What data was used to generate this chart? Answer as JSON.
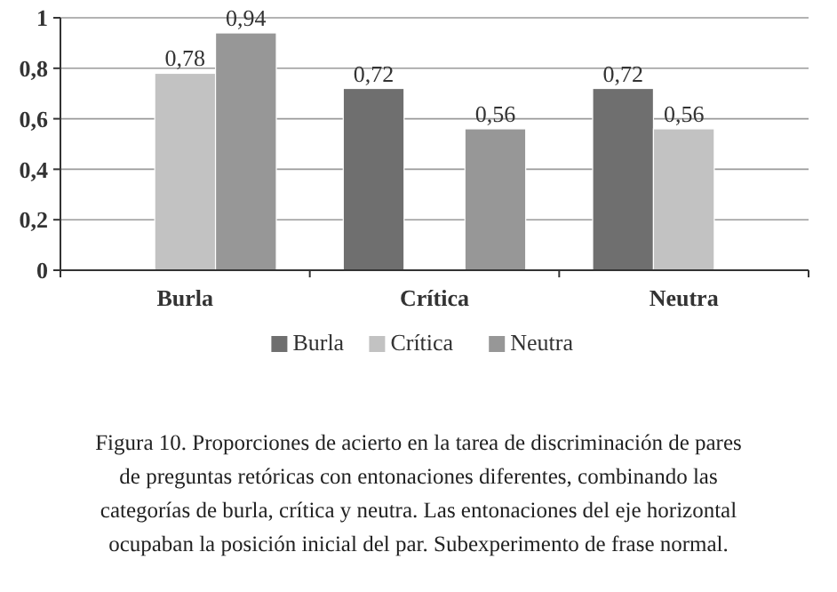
{
  "chart_data": {
    "type": "bar",
    "categories": [
      "Burla",
      "Crítica",
      "Neutra"
    ],
    "series": [
      {
        "name": "Burla",
        "color": "#6f6f6f",
        "values": [
          null,
          0.72,
          0.72
        ],
        "value_labels": [
          null,
          "0,72",
          "0,72"
        ]
      },
      {
        "name": "Crítica",
        "color": "#c2c2c2",
        "values": [
          0.78,
          null,
          0.56
        ],
        "value_labels": [
          "0,78",
          null,
          "0,56"
        ]
      },
      {
        "name": "Neutra",
        "color": "#979797",
        "values": [
          0.94,
          0.56,
          null
        ],
        "value_labels": [
          "0,94",
          "0,56",
          null
        ]
      }
    ],
    "ylim": [
      0,
      1
    ],
    "yticks": [
      0,
      {
        "value": 0.2,
        "label": "0,2"
      },
      {
        "value": 0.4,
        "label": "0,4"
      },
      {
        "value": 0.6,
        "label": "0,6"
      },
      {
        "value": 0.8,
        "label": "0,8"
      },
      1
    ],
    "grid": "y",
    "legend": "bottom",
    "annotations": [
      "Figura 10. Proporciones de acierto en la tarea de discriminación de pares de preguntas retóricas con entonaciones diferentes, combinando las categorías de burla, crítica y neutra. Las entonaciones del eje horizontal ocupaban la posición inicial del par. Subexperimento de frase normal."
    ]
  }
}
